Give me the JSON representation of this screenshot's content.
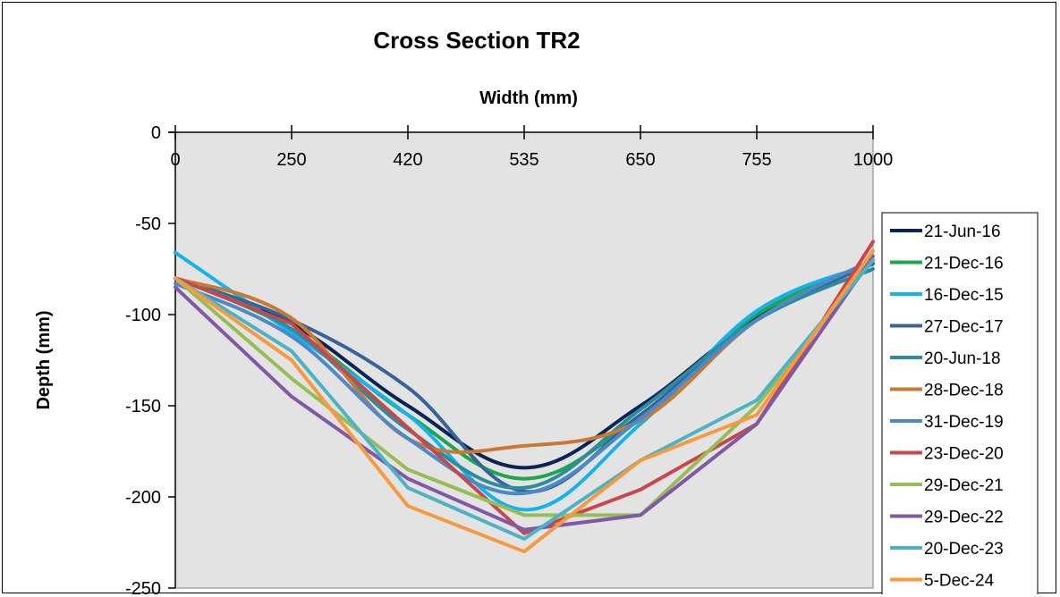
{
  "chart_data": {
    "type": "line",
    "title": "Cross Section TR2",
    "xlabel": "Width (mm)",
    "ylabel": "Depth (mm)",
    "x": [
      0,
      250,
      420,
      535,
      650,
      755,
      1000
    ],
    "x_tick_labels": [
      "0",
      "250",
      "420",
      "535",
      "650",
      "755",
      "1000"
    ],
    "ylim": [
      -250,
      0
    ],
    "y_ticks": [
      0,
      -50,
      -100,
      -150,
      -200,
      -250
    ],
    "y_tick_labels": [
      "0",
      "-50",
      "-100",
      "-150",
      "-200",
      "-250"
    ],
    "x_axis_position": "top",
    "plot_background": "#e3e3e3",
    "grid": false,
    "legend_position": "right",
    "series": [
      {
        "name": "21-Jun-16",
        "color": "#0b2458",
        "values": [
          -80,
          -105,
          -150,
          -184,
          -150,
          -102,
          -72
        ]
      },
      {
        "name": "21-Dec-16",
        "color": "#1ba84c",
        "values": [
          -80,
          -108,
          -155,
          -190,
          -155,
          -100,
          -72
        ]
      },
      {
        "name": "16-Dec-15",
        "color": "#13b3ee",
        "values": [
          -66,
          -110,
          -155,
          -207,
          -160,
          -98,
          -72
        ]
      },
      {
        "name": "27-Dec-17",
        "color": "#35639a",
        "values": [
          -80,
          -103,
          -140,
          -197,
          -155,
          -103,
          -72
        ]
      },
      {
        "name": "20-Jun-18",
        "color": "#2e8b9e",
        "values": [
          -80,
          -108,
          -163,
          -195,
          -152,
          -103,
          -75
        ]
      },
      {
        "name": "28-Dec-18",
        "color": "#c87a35",
        "values": [
          -80,
          -102,
          -168,
          -172,
          -158,
          -103,
          -70
        ]
      },
      {
        "name": "31-Dec-19",
        "color": "#4d88c8",
        "values": [
          -83,
          -112,
          -168,
          -198,
          -157,
          -103,
          -70
        ]
      },
      {
        "name": "23-Dec-20",
        "color": "#c8474a",
        "values": [
          -80,
          -105,
          -162,
          -220,
          -196,
          -160,
          -60
        ]
      },
      {
        "name": "29-Dec-21",
        "color": "#97bd55",
        "values": [
          -80,
          -135,
          -185,
          -210,
          -210,
          -150,
          -70
        ]
      },
      {
        "name": "29-Dec-22",
        "color": "#8059a6",
        "values": [
          -85,
          -145,
          -190,
          -218,
          -210,
          -160,
          -68
        ]
      },
      {
        "name": "20-Dec-23",
        "color": "#4cb3c6",
        "values": [
          -80,
          -120,
          -195,
          -223,
          -180,
          -147,
          -70
        ]
      },
      {
        "name": "5-Dec-24",
        "color": "#f69a3f",
        "values": [
          -80,
          -125,
          -205,
          -230,
          -180,
          -155,
          -65
        ]
      }
    ]
  }
}
